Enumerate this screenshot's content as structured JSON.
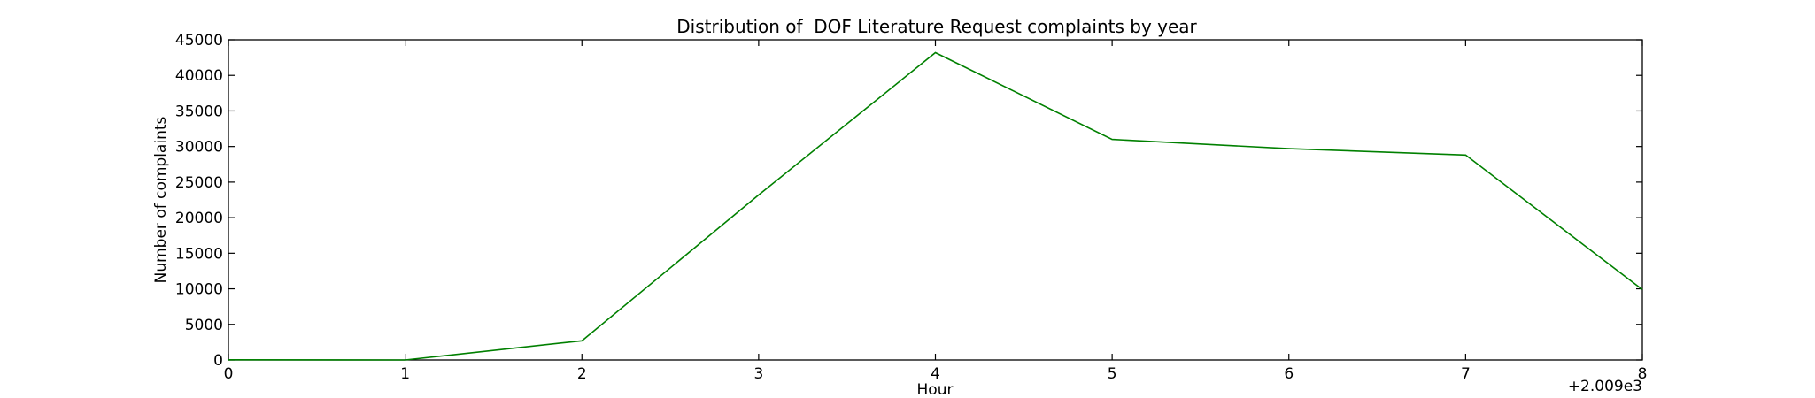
{
  "chart_data": {
    "type": "line",
    "title": "Distribution of  DOF Literature Request complaints by year",
    "xlabel": "Hour",
    "ylabel": "Number of complaints",
    "x_offset_label": "+2.009e3",
    "xlim": [
      0,
      8
    ],
    "ylim": [
      0,
      45000
    ],
    "x_ticks": [
      0,
      1,
      2,
      3,
      4,
      5,
      6,
      7,
      8
    ],
    "y_ticks": [
      0,
      5000,
      10000,
      15000,
      20000,
      25000,
      30000,
      35000,
      40000,
      45000
    ],
    "grid": false,
    "line_color": "#008000",
    "series": [
      {
        "x": [
          0,
          1,
          2,
          3,
          4,
          5,
          6,
          7,
          8
        ],
        "values": [
          30,
          0,
          2700,
          23200,
          43200,
          31000,
          29700,
          28800,
          9900
        ]
      }
    ]
  }
}
